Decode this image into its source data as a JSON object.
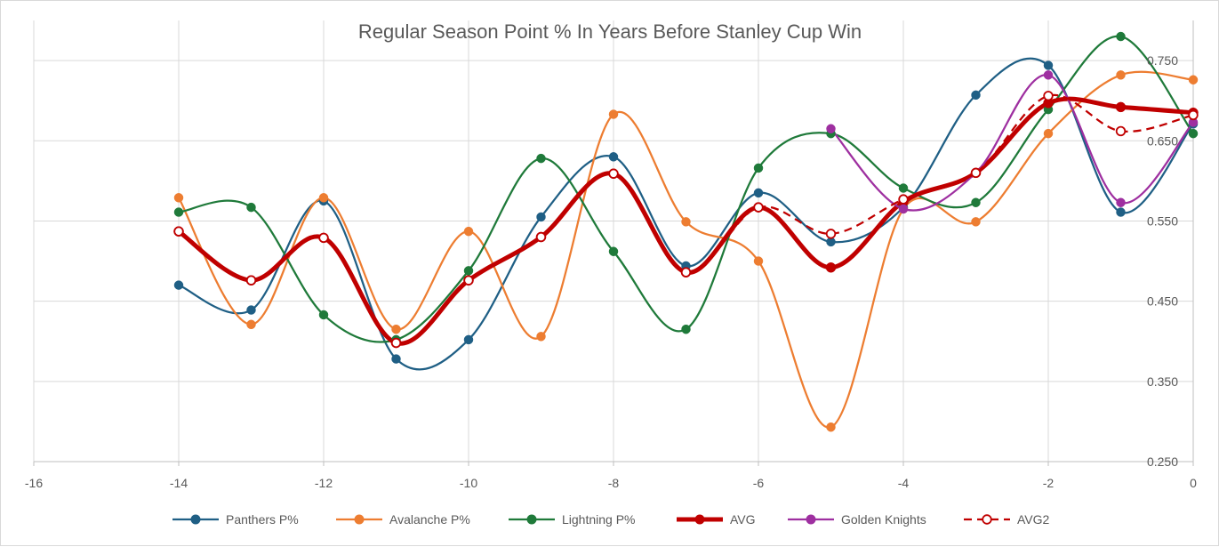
{
  "chart_data": {
    "type": "line",
    "title": "Regular Season Point % In Years Before Stanley Cup Win",
    "xlabel": "",
    "ylabel": "",
    "xlim": [
      -16,
      0
    ],
    "ylim": [
      0.25,
      0.8
    ],
    "x_ticks": [
      "-16",
      "-14",
      "-12",
      "-10",
      "-8",
      "-6",
      "-4",
      "-2",
      "0"
    ],
    "x_tick_values": [
      -16,
      -14,
      -12,
      -10,
      -8,
      -6,
      -4,
      -2,
      0
    ],
    "y_ticks": [
      "0.250",
      "0.350",
      "0.450",
      "0.550",
      "0.650",
      "0.750"
    ],
    "y_tick_values": [
      0.25,
      0.35,
      0.45,
      0.55,
      0.65,
      0.75
    ],
    "y_axis_side": "right",
    "grid": "vertical and horizontal",
    "legend_position": "bottom",
    "series": [
      {
        "name": "Panthers P%",
        "color": "#1f5f85",
        "marker": "filled-circle",
        "dashed": false,
        "thick": false,
        "x": [
          -14,
          -13,
          -12,
          -11,
          -10,
          -9,
          -8,
          -7,
          -6,
          -5,
          -4,
          -3,
          -2,
          -1,
          0
        ],
        "y": [
          0.47,
          0.439,
          0.575,
          0.378,
          0.402,
          0.555,
          0.63,
          0.494,
          0.585,
          0.524,
          0.567,
          0.707,
          0.744,
          0.561,
          0.671
        ]
      },
      {
        "name": "Avalanche P%",
        "color": "#ed7d31",
        "marker": "filled-circle",
        "dashed": false,
        "thick": false,
        "x": [
          -14,
          -13,
          -12,
          -11,
          -10,
          -9,
          -8,
          -7,
          -6,
          -5,
          -4,
          -3,
          -2,
          -1,
          0
        ],
        "y": [
          0.579,
          0.421,
          0.579,
          0.415,
          0.537,
          0.406,
          0.683,
          0.549,
          0.5,
          0.293,
          0.565,
          0.549,
          0.659,
          0.732,
          0.726
        ]
      },
      {
        "name": "Lightning P%",
        "color": "#1f7a3a",
        "marker": "filled-circle",
        "dashed": false,
        "thick": false,
        "x": [
          -14,
          -13,
          -12,
          -11,
          -10,
          -9,
          -8,
          -7,
          -6,
          -5,
          -4,
          -3,
          -2,
          -1,
          0
        ],
        "y": [
          0.561,
          0.567,
          0.433,
          0.402,
          0.488,
          0.628,
          0.512,
          0.415,
          0.616,
          0.659,
          0.591,
          0.573,
          0.689,
          0.78,
          0.659
        ]
      },
      {
        "name": "AVG",
        "color": "#c00000",
        "marker": "filled-circle",
        "dashed": false,
        "thick": true,
        "x": [
          -14,
          -13,
          -12,
          -11,
          -10,
          -9,
          -8,
          -7,
          -6,
          -5,
          -4,
          -3,
          -2,
          -1,
          0
        ],
        "y": [
          0.537,
          0.476,
          0.529,
          0.398,
          0.476,
          0.53,
          0.609,
          0.486,
          0.567,
          0.492,
          0.574,
          0.61,
          0.697,
          0.692,
          0.685
        ]
      },
      {
        "name": "Golden Knights",
        "color": "#9e2fa0",
        "marker": "filled-circle",
        "dashed": false,
        "thick": false,
        "x": [
          -5,
          -4,
          -3,
          -2,
          -1,
          0
        ],
        "y": [
          0.665,
          0.565,
          0.61,
          0.732,
          0.573,
          0.673
        ]
      },
      {
        "name": "AVG2",
        "color": "#c00000",
        "marker": "open-circle",
        "dashed": true,
        "thick": false,
        "x": [
          -14,
          -13,
          -12,
          -11,
          -10,
          -9,
          -8,
          -7,
          -6,
          -5,
          -4,
          -3,
          -2,
          -1,
          0
        ],
        "y": [
          0.537,
          0.476,
          0.529,
          0.398,
          0.476,
          0.53,
          0.609,
          0.486,
          0.567,
          0.534,
          0.577,
          0.61,
          0.706,
          0.662,
          0.682
        ]
      }
    ]
  }
}
